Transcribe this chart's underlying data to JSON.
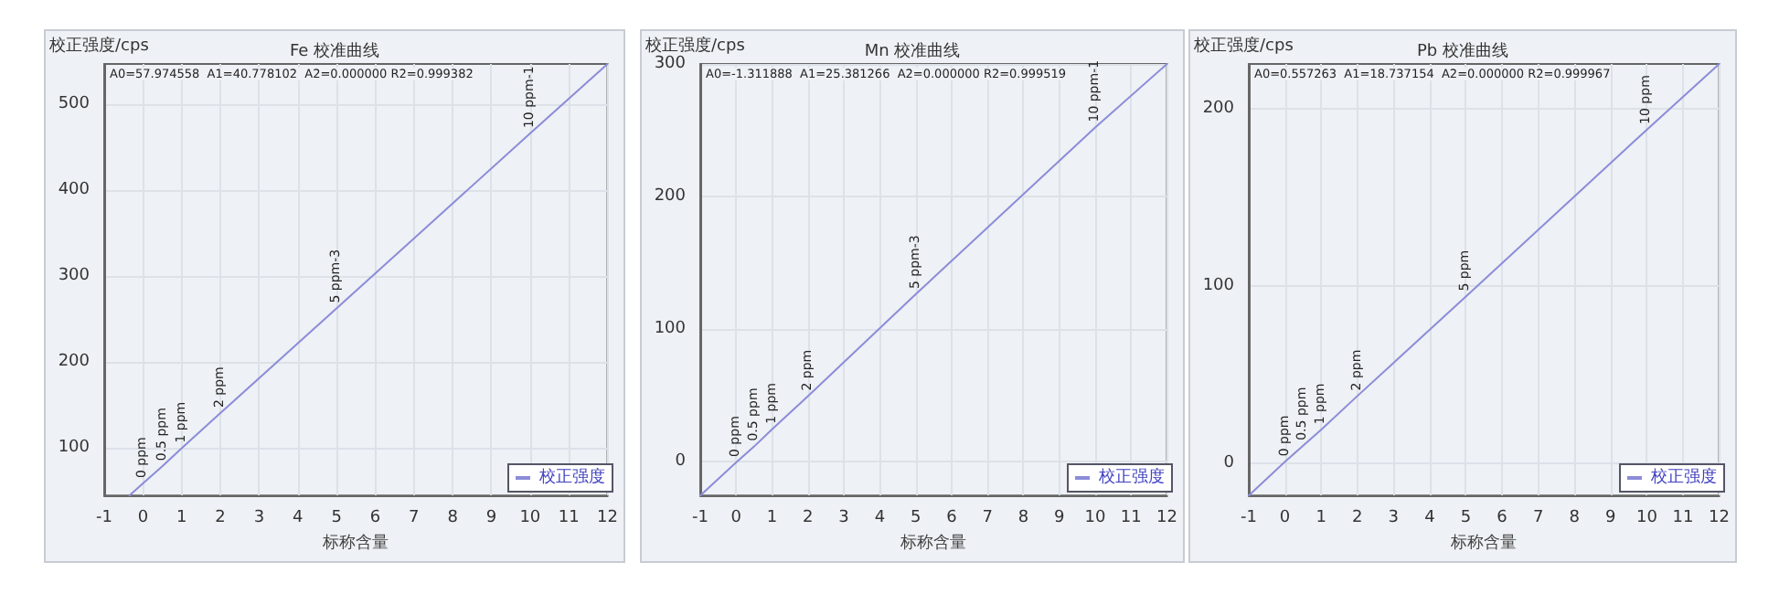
{
  "chart_data": [
    {
      "type": "line",
      "title": "Fe 校准曲线",
      "xlabel": "标称含量",
      "ylabel": "校正强度/cps",
      "annotations": [
        "A0=57.974558  A1=40.778102  A2=0.000000 R2=0.999382",
        {
          "text": "0 ppm",
          "x": 0,
          "y": 58
        },
        {
          "text": "0.5 ppm",
          "x": 0.5,
          "y": 78
        },
        {
          "text": "1 ppm",
          "x": 1,
          "y": 99
        },
        {
          "text": "2 ppm",
          "x": 2,
          "y": 140
        },
        {
          "text": "5 ppm-3",
          "x": 5,
          "y": 262
        },
        {
          "text": "10 ppm-1",
          "x": 10,
          "y": 466
        }
      ],
      "series": [
        {
          "name": "校正强度",
          "color": "#8c8cd8",
          "x": [
            -0.35,
            0,
            0.5,
            1,
            2,
            5,
            10,
            12
          ],
          "values": [
            44,
            58,
            78,
            99,
            140,
            262,
            466,
            547
          ]
        }
      ],
      "xlim": [
        -1,
        12
      ],
      "xticks": [
        -1,
        0,
        1,
        2,
        3,
        4,
        5,
        6,
        7,
        8,
        9,
        10,
        11,
        12
      ],
      "ylim": [
        44,
        547
      ],
      "yticks": [
        100,
        200,
        300,
        400,
        500
      ],
      "grid": true,
      "legend": "bottom right",
      "marker": "none",
      "line_style": "solid"
    },
    {
      "type": "line",
      "title": "Mn 校准曲线",
      "xlabel": "标称含量",
      "ylabel": "校正强度/cps",
      "annotations": [
        "A0=-1.311888  A1=25.381266  A2=0.000000 R2=0.999519",
        {
          "text": "0 ppm",
          "x": 0,
          "y": -1
        },
        {
          "text": "0.5 ppm",
          "x": 0.5,
          "y": 11
        },
        {
          "text": "1 ppm",
          "x": 1,
          "y": 24
        },
        {
          "text": "2 ppm",
          "x": 2,
          "y": 49
        },
        {
          "text": "5 ppm-3",
          "x": 5,
          "y": 126
        },
        {
          "text": "10 ppm-1",
          "x": 10,
          "y": 252
        }
      ],
      "series": [
        {
          "name": "校正强度",
          "color": "#8c8cd8",
          "x": [
            -1,
            0,
            0.5,
            1,
            2,
            5,
            10,
            12
          ],
          "values": [
            -26,
            -1,
            11,
            24,
            49,
            126,
            252,
            300
          ]
        }
      ],
      "xlim": [
        -1,
        12
      ],
      "xticks": [
        -1,
        0,
        1,
        2,
        3,
        4,
        5,
        6,
        7,
        8,
        9,
        10,
        11,
        12
      ],
      "ylim": [
        -26,
        300
      ],
      "yticks": [
        0,
        100,
        200,
        300
      ],
      "grid": true,
      "legend": "bottom right",
      "marker": "none",
      "line_style": "solid"
    },
    {
      "type": "line",
      "title": "Pb 校准曲线",
      "xlabel": "标称含量",
      "ylabel": "校正强度/cps",
      "annotations": [
        "A0=0.557263  A1=18.737154  A2=0.000000 R2=0.999967",
        {
          "text": "0 ppm",
          "x": 0,
          "y": 1
        },
        {
          "text": "0.5 ppm",
          "x": 0.5,
          "y": 10
        },
        {
          "text": "1 ppm",
          "x": 1,
          "y": 19
        },
        {
          "text": "2 ppm",
          "x": 2,
          "y": 38
        },
        {
          "text": "5 ppm",
          "x": 5,
          "y": 94
        },
        {
          "text": "10 ppm",
          "x": 10,
          "y": 188
        }
      ],
      "series": [
        {
          "name": "校正强度",
          "color": "#8c8cd8",
          "x": [
            -1,
            0,
            0.5,
            1,
            2,
            5,
            10,
            12
          ],
          "values": [
            -18,
            1,
            10,
            19,
            38,
            94,
            188,
            225
          ]
        }
      ],
      "xlim": [
        -1,
        12
      ],
      "xticks": [
        -1,
        0,
        1,
        2,
        3,
        4,
        5,
        6,
        7,
        8,
        9,
        10,
        11,
        12
      ],
      "ylim": [
        -18,
        225
      ],
      "yticks": [
        0,
        100,
        200
      ],
      "grid": true,
      "legend": "bottom right",
      "marker": "none",
      "line_style": "solid"
    }
  ]
}
